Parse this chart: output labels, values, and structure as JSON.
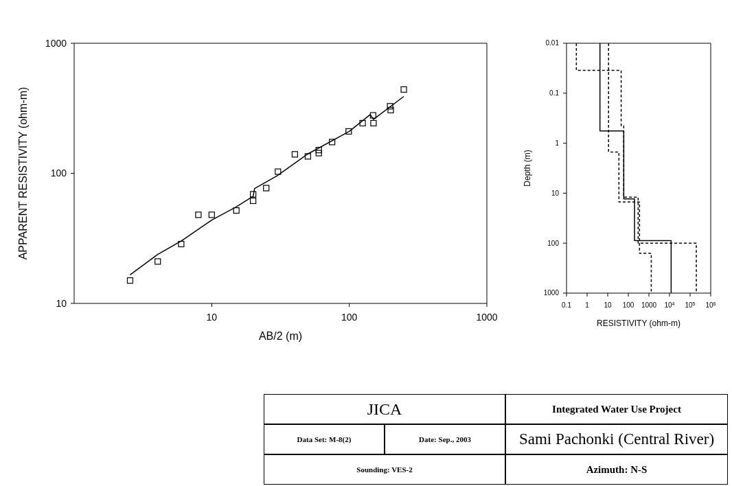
{
  "chart_data": [
    {
      "type": "scatter",
      "xlabel": "AB/2 (m)",
      "ylabel": "APPARENT RESISTIVITY (ohm-m)",
      "log": "xy",
      "xlim": [
        1,
        1000
      ],
      "ylim": [
        10,
        1000
      ],
      "xticks": [
        10,
        100,
        1000
      ],
      "yticks": [
        10,
        100,
        1000
      ],
      "series": [
        {
          "type": "scatter",
          "marker": "square",
          "color": "#000000",
          "x": [
            2.55,
            4.05,
            6,
            8,
            10,
            15.1,
            20,
            20,
            24.9,
            30.3,
            40.2,
            50,
            60,
            60,
            75,
            99,
            125,
            149,
            150,
            198,
            200,
            249
          ],
          "values": [
            15,
            21,
            28.6,
            48,
            48,
            51.8,
            69,
            61.5,
            77,
            103,
            140,
            135,
            143,
            151,
            174,
            210,
            243,
            279,
            243,
            328,
            306,
            441
          ]
        },
        {
          "type": "line",
          "marker": "none",
          "line_style": "solid",
          "color": "#000000",
          "x": [
            2.55,
            4.05,
            6,
            10,
            15,
            20,
            20.5,
            30,
            50,
            100,
            142,
            150,
            249
          ],
          "values": [
            16.6,
            23.8,
            30.2,
            43.7,
            55,
            66.7,
            76.5,
            96,
            141,
            210,
            283,
            260,
            390
          ]
        }
      ]
    },
    {
      "type": "line",
      "xlabel": "RESISTIVITY (ohm-m)",
      "ylabel": "Depth (m)",
      "log": "xy",
      "xlim": [
        0.1,
        1000000
      ],
      "ylim": [
        1000,
        0.01
      ],
      "xticks": [
        0.1,
        1,
        10,
        100,
        1000,
        {
          "value": 10000,
          "label": "10$^{4}$"
        },
        {
          "value": 100000,
          "label": "10$^{5}$"
        },
        {
          "value": 1000000,
          "label": "10$^{6}$"
        }
      ],
      "yticks": [
        0.01,
        0.1,
        1,
        10,
        100,
        1000
      ],
      "series": [
        {
          "line_style": "dashed",
          "color": "#000000",
          "x": [
            0.3,
            0.3,
            45,
            45,
            60,
            60,
            300,
            300,
            200000,
            200000
          ],
          "values": [
            0.01,
            0.035,
            0.035,
            0.45,
            0.45,
            12,
            12,
            100,
            100,
            1000
          ]
        },
        {
          "line_style": "dashed",
          "color": "#000000",
          "x": [
            11,
            11,
            35,
            35,
            350,
            350,
            1300,
            1300
          ],
          "values": [
            0.01,
            1.5,
            1.5,
            15,
            15,
            160,
            160,
            1000
          ]
        },
        {
          "line_style": "solid",
          "color": "#000000",
          "x": [
            4.2,
            4.2,
            60,
            60,
            200,
            200,
            12000,
            12000
          ],
          "values": [
            0.01,
            0.57,
            0.57,
            13,
            13,
            89,
            89,
            1000
          ]
        }
      ]
    },
    {
      "type": "other",
      "annotations": [
        "JICA",
        "Data Set: M-8(2)",
        "Date: Sep., 2003",
        "Sounding: VES-2",
        "Integrated Water Use Project",
        "Sami Pachonki (Central River)",
        "Azimuth: N-S"
      ]
    }
  ]
}
